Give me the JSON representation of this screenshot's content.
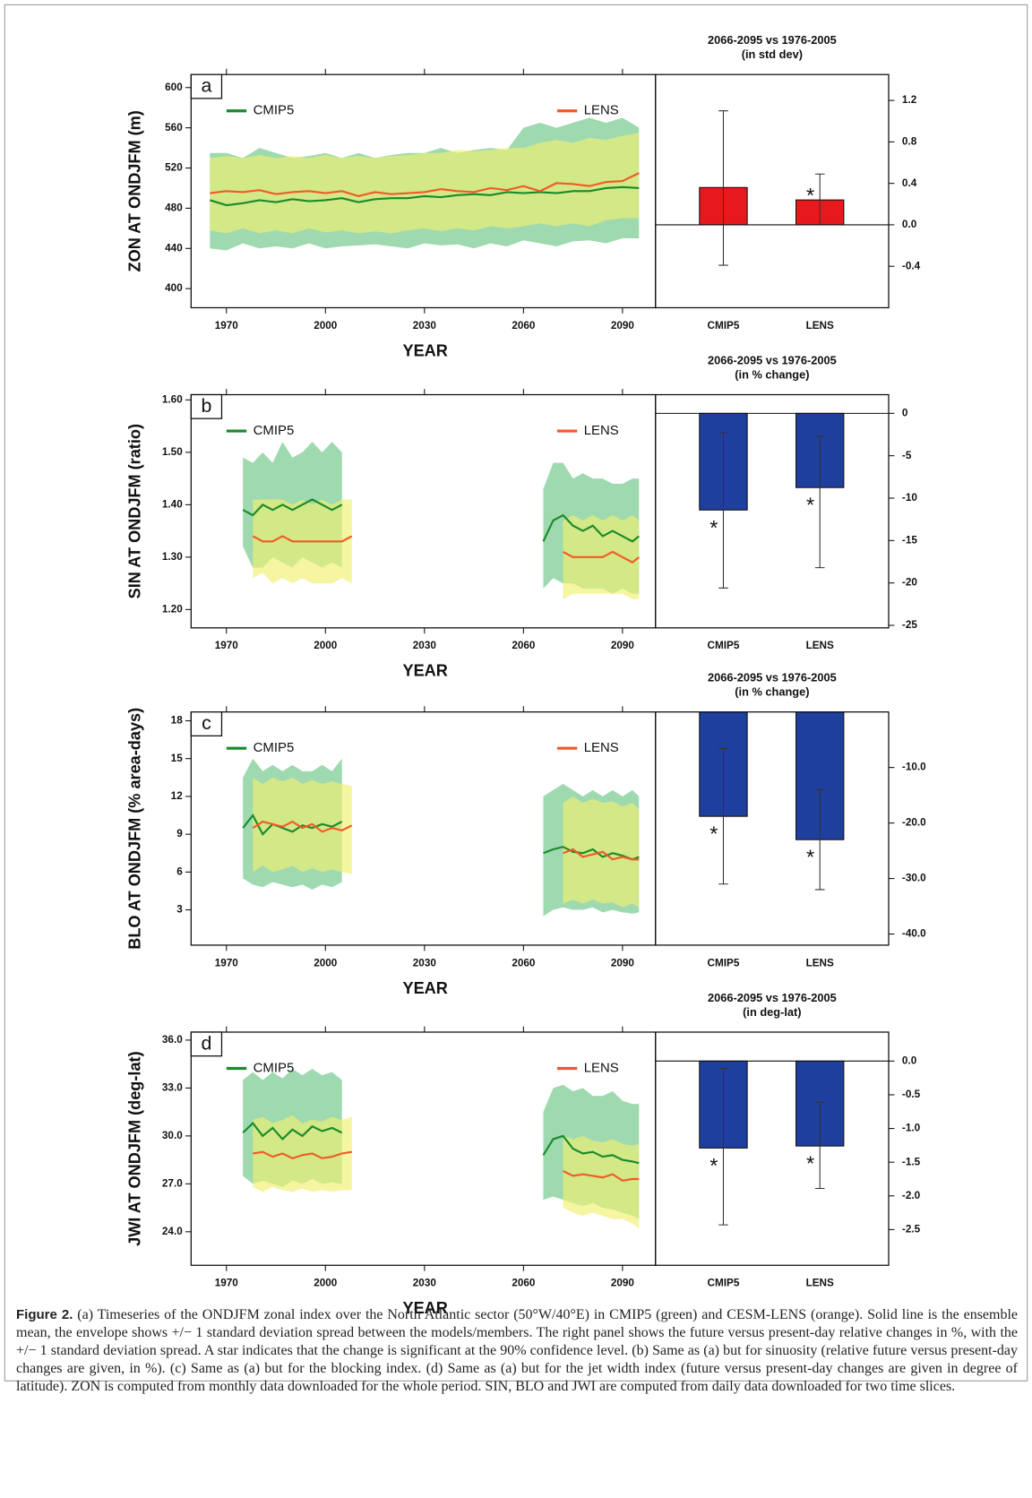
{
  "chart_data": [
    {
      "type": "line",
      "panel_label": "a",
      "ylabel": "ZON AT ONDJFM (m)",
      "xlabel": "YEAR",
      "x": [
        1965,
        1970,
        1975,
        1980,
        1985,
        1990,
        1995,
        2000,
        2005,
        2010,
        2015,
        2020,
        2025,
        2030,
        2035,
        2040,
        2045,
        2050,
        2055,
        2060,
        2065,
        2070,
        2075,
        2080,
        2085,
        2090,
        2095
      ],
      "xlim": [
        1959.3,
        2100
      ],
      "xticks": [
        1970,
        2000,
        2030,
        2060,
        2090
      ],
      "ylim": [
        381,
        613
      ],
      "yticks": [
        400,
        440,
        480,
        520,
        560,
        600
      ],
      "series": [
        {
          "name": "CMIP5",
          "color": "#1a8a2a",
          "band_color": "#7fcc95",
          "values": [
            488,
            483,
            485,
            488,
            486,
            489,
            487,
            488,
            490,
            486,
            489,
            490,
            490,
            492,
            491,
            493,
            494,
            493,
            496,
            495,
            496,
            495,
            497,
            497,
            500,
            501,
            500
          ],
          "lower": [
            440,
            438,
            445,
            440,
            442,
            440,
            445,
            440,
            442,
            443,
            444,
            442,
            440,
            445,
            443,
            444,
            440,
            445,
            442,
            448,
            445,
            442,
            447,
            448,
            445,
            450,
            450
          ],
          "upper": [
            535,
            535,
            530,
            540,
            535,
            530,
            532,
            535,
            530,
            535,
            530,
            533,
            535,
            535,
            540,
            535,
            538,
            540,
            538,
            560,
            565,
            560,
            565,
            570,
            565,
            570,
            560
          ]
        },
        {
          "name": "LENS",
          "color": "#f05a28",
          "band_color": "#f0f070",
          "values": [
            495,
            497,
            496,
            498,
            494,
            496,
            497,
            495,
            497,
            492,
            496,
            494,
            495,
            496,
            499,
            497,
            496,
            500,
            498,
            502,
            497,
            505,
            504,
            502,
            506,
            507,
            515
          ],
          "lower": [
            458,
            455,
            460,
            455,
            458,
            455,
            460,
            456,
            458,
            455,
            457,
            455,
            458,
            460,
            457,
            460,
            458,
            462,
            460,
            462,
            465,
            462,
            465,
            462,
            468,
            470,
            470
          ],
          "upper": [
            530,
            532,
            530,
            533,
            530,
            532,
            530,
            533,
            530,
            532,
            530,
            532,
            533,
            535,
            535,
            538,
            537,
            538,
            540,
            540,
            545,
            548,
            545,
            550,
            548,
            552,
            555
          ]
        }
      ]
    },
    {
      "type": "bar",
      "title": "2066-2095 vs 1976-2005",
      "subtitle": "(in std dev)",
      "categories": [
        "CMIP5",
        "LENS"
      ],
      "values": [
        0.36,
        0.24
      ],
      "error_low": [
        -0.39,
        0.0
      ],
      "error_high": [
        1.1,
        0.49
      ],
      "significant": [
        false,
        true
      ],
      "marker": "*",
      "color": "#e8191c",
      "ylim": [
        -0.8,
        1.45
      ],
      "yticks": [
        {
          "value": -0.4,
          "label": "-0.4"
        },
        {
          "value": 0,
          "label": "0.0"
        },
        0.4,
        0.8,
        1.2
      ]
    },
    {
      "type": "line",
      "panel_label": "b",
      "ylabel": "SIN AT ONDJFM (ratio)",
      "xlabel": "YEAR",
      "x": [
        1975,
        1978,
        1981,
        1984,
        1987,
        1990,
        1993,
        1996,
        1999,
        2002,
        2005,
        2008,
        2066,
        2069,
        2072,
        2075,
        2078,
        2081,
        2084,
        2087,
        2090,
        2093,
        2095
      ],
      "xlim": [
        1959.3,
        2100
      ],
      "xticks": [
        1970,
        2000,
        2030,
        2060,
        2090
      ],
      "ylim": [
        1.165,
        1.61
      ],
      "yticks": [
        {
          "value": 1.2,
          "label": "1.20"
        },
        {
          "value": 1.3,
          "label": "1.30"
        },
        {
          "value": 1.4,
          "label": "1.40"
        },
        {
          "value": 1.5,
          "label": "1.50"
        },
        {
          "value": 1.6,
          "label": "1.60"
        }
      ],
      "series": [
        {
          "name": "CMIP5",
          "color": "#1a8a2a",
          "band_color": "#7fcc95",
          "values": [
            1.39,
            1.38,
            1.4,
            1.39,
            1.4,
            1.39,
            1.4,
            1.41,
            1.4,
            1.39,
            1.4,
            null,
            1.33,
            1.37,
            1.38,
            1.36,
            1.35,
            1.36,
            1.34,
            1.35,
            1.34,
            1.33,
            1.34
          ],
          "lower": [
            1.32,
            1.28,
            1.28,
            1.3,
            1.29,
            1.28,
            1.3,
            1.29,
            1.28,
            1.29,
            1.28,
            null,
            1.24,
            1.26,
            1.25,
            1.25,
            1.24,
            1.24,
            1.24,
            1.23,
            1.24,
            1.23,
            1.23
          ],
          "upper": [
            1.49,
            1.48,
            1.5,
            1.48,
            1.52,
            1.49,
            1.5,
            1.52,
            1.5,
            1.52,
            1.5,
            null,
            1.43,
            1.48,
            1.48,
            1.45,
            1.46,
            1.45,
            1.45,
            1.44,
            1.44,
            1.45,
            1.45
          ]
        },
        {
          "name": "LENS",
          "color": "#f05a28",
          "band_color": "#f0f070",
          "values": [
            null,
            1.34,
            1.33,
            1.33,
            1.34,
            1.33,
            1.33,
            1.33,
            1.33,
            1.33,
            1.33,
            1.34,
            null,
            null,
            1.31,
            1.3,
            1.3,
            1.3,
            1.3,
            1.31,
            1.3,
            1.29,
            1.3
          ],
          "lower": [
            null,
            1.26,
            1.27,
            1.25,
            1.26,
            1.25,
            1.26,
            1.25,
            1.25,
            1.25,
            1.26,
            1.25,
            null,
            null,
            1.22,
            1.23,
            1.23,
            1.23,
            1.23,
            1.23,
            1.23,
            1.22,
            1.22
          ],
          "upper": [
            null,
            1.41,
            1.41,
            1.41,
            1.41,
            1.4,
            1.41,
            1.4,
            1.41,
            1.4,
            1.41,
            1.41,
            null,
            null,
            1.37,
            1.38,
            1.37,
            1.38,
            1.37,
            1.38,
            1.37,
            1.38,
            1.37
          ]
        }
      ]
    },
    {
      "type": "bar",
      "title": "2066-2095 vs 1976-2005",
      "subtitle": "(in % change)",
      "categories": [
        "CMIP5",
        "LENS"
      ],
      "values": [
        -11.4,
        -8.75
      ],
      "error_low": [
        -20.6,
        -18.2
      ],
      "error_high": [
        -2.3,
        -2.7
      ],
      "significant": [
        true,
        true
      ],
      "marker": "*",
      "color": "#1f3f9f",
      "ylim": [
        -25.3,
        2.2
      ],
      "yticks": [
        -25,
        -20,
        -15,
        -10,
        -5,
        0
      ]
    },
    {
      "type": "line",
      "panel_label": "c",
      "ylabel": "BLO AT ONDJFM (% area-days)",
      "xlabel": "YEAR",
      "x": [
        1975,
        1978,
        1981,
        1984,
        1987,
        1990,
        1993,
        1996,
        1999,
        2002,
        2005,
        2008,
        2066,
        2069,
        2072,
        2075,
        2078,
        2081,
        2084,
        2087,
        2090,
        2093,
        2095
      ],
      "xlim": [
        1959.3,
        2100
      ],
      "xticks": [
        1970,
        2000,
        2030,
        2060,
        2090
      ],
      "ylim": [
        0.2,
        18.7
      ],
      "yticks": [
        3,
        6,
        9,
        12,
        15,
        18
      ],
      "series": [
        {
          "name": "CMIP5",
          "color": "#1a8a2a",
          "band_color": "#7fcc95",
          "values": [
            9.5,
            10.5,
            9.0,
            9.8,
            9.5,
            9.2,
            9.7,
            9.5,
            9.8,
            9.6,
            10.0,
            null,
            7.5,
            7.8,
            8.0,
            7.6,
            7.5,
            7.8,
            7.2,
            7.5,
            7.3,
            7.0,
            7.2
          ],
          "lower": [
            5.5,
            5.0,
            4.8,
            5.2,
            5.0,
            4.8,
            5.0,
            4.6,
            5.0,
            4.8,
            5.2,
            null,
            2.5,
            3.0,
            3.2,
            3.0,
            3.0,
            3.2,
            2.8,
            3.0,
            2.8,
            2.7,
            2.8
          ],
          "upper": [
            13.5,
            15.0,
            14.0,
            14.5,
            14.0,
            14.5,
            14.0,
            14.0,
            14.5,
            14.0,
            15.0,
            null,
            12.0,
            12.5,
            13.0,
            12.5,
            12.0,
            12.5,
            12.0,
            12.5,
            12.0,
            12.5,
            12.0
          ]
        },
        {
          "name": "LENS",
          "color": "#f05a28",
          "band_color": "#f0f070",
          "values": [
            null,
            9.5,
            10.0,
            9.8,
            9.6,
            10.0,
            9.5,
            9.8,
            9.2,
            9.5,
            9.3,
            9.7,
            null,
            null,
            7.5,
            7.8,
            7.2,
            7.4,
            7.6,
            7.0,
            7.2,
            7.0,
            7.0
          ],
          "lower": [
            null,
            6.0,
            6.5,
            6.0,
            6.2,
            6.5,
            6.0,
            6.3,
            6.0,
            6.2,
            6.0,
            5.8,
            null,
            null,
            3.5,
            3.8,
            3.5,
            3.8,
            3.5,
            3.6,
            3.2,
            3.5,
            3.2
          ],
          "upper": [
            null,
            13.5,
            13.0,
            13.5,
            13.2,
            13.5,
            13.0,
            13.3,
            13.0,
            13.2,
            13.0,
            12.8,
            null,
            null,
            11.5,
            12.0,
            11.5,
            11.8,
            11.5,
            11.6,
            11.2,
            11.5,
            11.0
          ]
        }
      ]
    },
    {
      "type": "bar",
      "title": "2066-2095 vs 1976-2005",
      "subtitle": "(in % change)",
      "categories": [
        "CMIP5",
        "LENS"
      ],
      "values": [
        -18.8,
        -23.0
      ],
      "error_low": [
        -31.0,
        -32.0
      ],
      "error_high": [
        -6.6,
        -14.0
      ],
      "significant": [
        true,
        true
      ],
      "marker": "*",
      "color": "#1f3f9f",
      "ylim": [
        -42,
        0
      ],
      "yticks": [
        {
          "value": -40,
          "label": "-40.0"
        },
        {
          "value": -30,
          "label": "-30.0"
        },
        {
          "value": -20,
          "label": "-20.0"
        },
        {
          "value": -10,
          "label": "-10.0"
        }
      ]
    },
    {
      "type": "line",
      "panel_label": "d",
      "ylabel": "JWI AT ONDJFM (deg-lat)",
      "xlabel": "YEAR",
      "x": [
        1975,
        1978,
        1981,
        1984,
        1987,
        1990,
        1993,
        1996,
        1999,
        2002,
        2005,
        2008,
        2066,
        2069,
        2072,
        2075,
        2078,
        2081,
        2084,
        2087,
        2090,
        2093,
        2095
      ],
      "xlim": [
        1959.3,
        2100
      ],
      "xticks": [
        1970,
        2000,
        2030,
        2060,
        2090
      ],
      "ylim": [
        21.9,
        36.5
      ],
      "yticks": [
        {
          "value": 24,
          "label": "24.0"
        },
        {
          "value": 27,
          "label": "27.0"
        },
        {
          "value": 30,
          "label": "30.0"
        },
        {
          "value": 33,
          "label": "33.0"
        },
        {
          "value": 36,
          "label": "36.0"
        }
      ],
      "series": [
        {
          "name": "CMIP5",
          "color": "#1a8a2a",
          "band_color": "#7fcc95",
          "values": [
            30.2,
            30.8,
            30.0,
            30.5,
            29.8,
            30.4,
            30.0,
            30.6,
            30.3,
            30.5,
            30.2,
            null,
            28.8,
            29.8,
            30.0,
            29.2,
            28.9,
            29.0,
            28.7,
            28.8,
            28.5,
            28.4,
            28.3
          ],
          "lower": [
            27.5,
            27.0,
            27.2,
            27.0,
            26.8,
            27.2,
            27.0,
            27.3,
            27.0,
            27.1,
            27.0,
            null,
            26.0,
            26.2,
            26.0,
            25.8,
            25.6,
            25.8,
            25.5,
            25.4,
            25.2,
            25.0,
            24.8
          ],
          "upper": [
            33.5,
            34.0,
            33.5,
            34.0,
            33.6,
            34.2,
            33.8,
            34.2,
            33.8,
            34.0,
            33.5,
            null,
            31.5,
            33.0,
            33.2,
            32.8,
            33.0,
            32.5,
            32.5,
            32.8,
            32.2,
            32.0,
            32.0
          ]
        },
        {
          "name": "LENS",
          "color": "#f05a28",
          "band_color": "#f0f070",
          "values": [
            null,
            28.9,
            29.0,
            28.7,
            28.9,
            28.6,
            28.8,
            28.9,
            28.6,
            28.7,
            28.9,
            29.0,
            null,
            null,
            27.8,
            27.5,
            27.6,
            27.5,
            27.4,
            27.6,
            27.2,
            27.3,
            27.3
          ],
          "lower": [
            null,
            26.8,
            26.5,
            26.8,
            26.6,
            26.5,
            26.7,
            26.5,
            26.6,
            26.5,
            26.6,
            26.6,
            null,
            null,
            25.5,
            25.2,
            25.0,
            25.2,
            25.0,
            24.8,
            24.8,
            24.5,
            24.2
          ],
          "upper": [
            null,
            31.0,
            31.2,
            30.8,
            31.0,
            31.3,
            30.8,
            31.0,
            30.9,
            31.2,
            31.0,
            31.2,
            null,
            null,
            30.0,
            29.8,
            30.0,
            29.7,
            29.6,
            29.8,
            29.5,
            29.4,
            29.5
          ]
        }
      ]
    },
    {
      "type": "bar",
      "title": "2066-2095 vs 1976-2005",
      "subtitle": "(in deg-lat)",
      "categories": [
        "CMIP5",
        "LENS"
      ],
      "values": [
        -1.29,
        -1.26
      ],
      "error_low": [
        -2.43,
        -1.89
      ],
      "error_high": [
        -0.11,
        -0.61
      ],
      "significant": [
        true,
        true
      ],
      "marker": "*",
      "color": "#1f3f9f",
      "ylim": [
        -3.03,
        0.43
      ],
      "yticks": [
        -2.5,
        {
          "value": -2,
          "label": "-2.0"
        },
        -1.5,
        {
          "value": -1,
          "label": "-1.0"
        },
        -0.5,
        {
          "value": 0,
          "label": "0.0"
        }
      ]
    }
  ],
  "caption": {
    "label": "Figure 2.",
    "text": "(a) Timeseries of the ONDJFM zonal index over the North Atlantic sector (50°W/40°E) in CMIP5 (green) and CESM-LENS (orange). Solid line is the ensemble mean, the envelope shows +/− 1 standard deviation spread between the models/members. The right panel shows the future versus present-day relative changes in %, with the +/− 1 standard deviation spread. A star indicates that the change is significant at the 90% confidence level. (b) Same as (a) but for sinuosity (relative future versus present-day changes are given, in %). (c) Same as (a) but for the blocking index. (d) Same as (a) but for the jet width index (future versus present-day changes are given in degree of latitude). ZON is computed from monthly data downloaded for the whole period. SIN, BLO and JWI are computed from daily data downloaded for two time slices."
  }
}
